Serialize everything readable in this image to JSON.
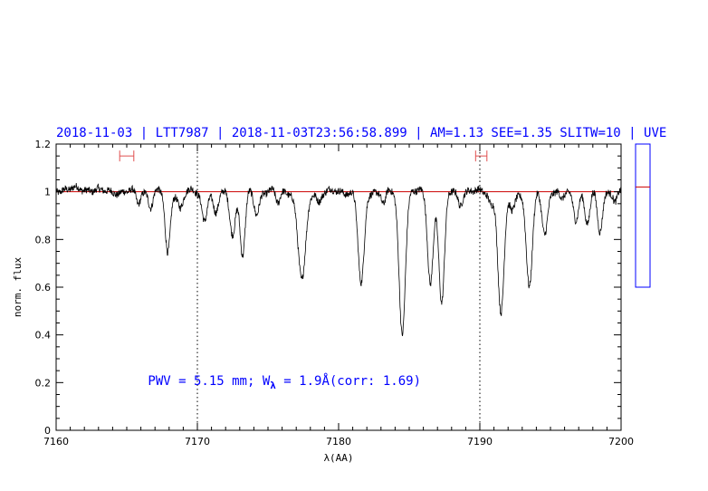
{
  "chart_data": {
    "type": "line",
    "title": "2018-11-03 | LTT7987 | 2018-11-03T23:56:58.899 | AM=1.13  SEE=1.35  SLITW=10 | UVE",
    "xlabel": "λ(AA)",
    "ylabel": "norm. flux",
    "xlim": [
      7160,
      7200
    ],
    "ylim": [
      0,
      1.2
    ],
    "x_ticks": [
      "7160",
      "7170",
      "7180",
      "7190",
      "7200"
    ],
    "y_ticks": [
      "0",
      "0.2",
      "0.4",
      "0.6",
      "0.8",
      "1",
      "1.2"
    ],
    "grid": false,
    "continuum_level": 1.0,
    "continuum_color": "#cc0000",
    "spectrum_color": "#000000",
    "reference_lines_x": [
      7170,
      7190
    ],
    "continuum_windows": [
      {
        "x0": 7164.5,
        "x1": 7165.5,
        "y": 1.15
      },
      {
        "x0": 7189.7,
        "x1": 7190.5,
        "y": 1.15
      }
    ],
    "annotation": {
      "prefix": "PWV = 5.15 mm; W",
      "subscript": "λ",
      "suffix": " = 1.9Å(corr: 1.69)",
      "x": 7166.5,
      "y": 0.19
    },
    "absorption_lines": [
      {
        "center": 7165.8,
        "depth": 0.05,
        "width": 0.15
      },
      {
        "center": 7166.7,
        "depth": 0.06,
        "width": 0.15
      },
      {
        "center": 7167.9,
        "depth": 0.26,
        "width": 0.18
      },
      {
        "center": 7168.8,
        "depth": 0.07,
        "width": 0.18
      },
      {
        "center": 7170.5,
        "depth": 0.12,
        "width": 0.18
      },
      {
        "center": 7171.3,
        "depth": 0.1,
        "width": 0.18
      },
      {
        "center": 7172.5,
        "depth": 0.17,
        "width": 0.2
      },
      {
        "center": 7173.2,
        "depth": 0.27,
        "width": 0.18
      },
      {
        "center": 7174.2,
        "depth": 0.09,
        "width": 0.18
      },
      {
        "center": 7175.7,
        "depth": 0.05,
        "width": 0.15
      },
      {
        "center": 7177.4,
        "depth": 0.37,
        "width": 0.28
      },
      {
        "center": 7178.6,
        "depth": 0.04,
        "width": 0.15
      },
      {
        "center": 7181.6,
        "depth": 0.39,
        "width": 0.22
      },
      {
        "center": 7183.2,
        "depth": 0.05,
        "width": 0.15
      },
      {
        "center": 7184.5,
        "depth": 0.59,
        "width": 0.22
      },
      {
        "center": 7186.5,
        "depth": 0.38,
        "width": 0.2
      },
      {
        "center": 7187.3,
        "depth": 0.47,
        "width": 0.2
      },
      {
        "center": 7188.6,
        "depth": 0.05,
        "width": 0.15
      },
      {
        "center": 7190.8,
        "depth": 0.05,
        "width": 0.15
      },
      {
        "center": 7191.5,
        "depth": 0.52,
        "width": 0.22
      },
      {
        "center": 7192.3,
        "depth": 0.08,
        "width": 0.18
      },
      {
        "center": 7193.5,
        "depth": 0.4,
        "width": 0.22
      },
      {
        "center": 7194.6,
        "depth": 0.17,
        "width": 0.2
      },
      {
        "center": 7195.8,
        "depth": 0.04,
        "width": 0.15
      },
      {
        "center": 7196.8,
        "depth": 0.11,
        "width": 0.18
      },
      {
        "center": 7197.6,
        "depth": 0.14,
        "width": 0.18
      },
      {
        "center": 7198.5,
        "depth": 0.16,
        "width": 0.18
      },
      {
        "center": 7199.6,
        "depth": 0.05,
        "width": 0.15
      }
    ]
  },
  "side_panel": {
    "frame_color": "#0000ff",
    "marker_color": "#cc0000",
    "marker_fraction": 0.7
  }
}
